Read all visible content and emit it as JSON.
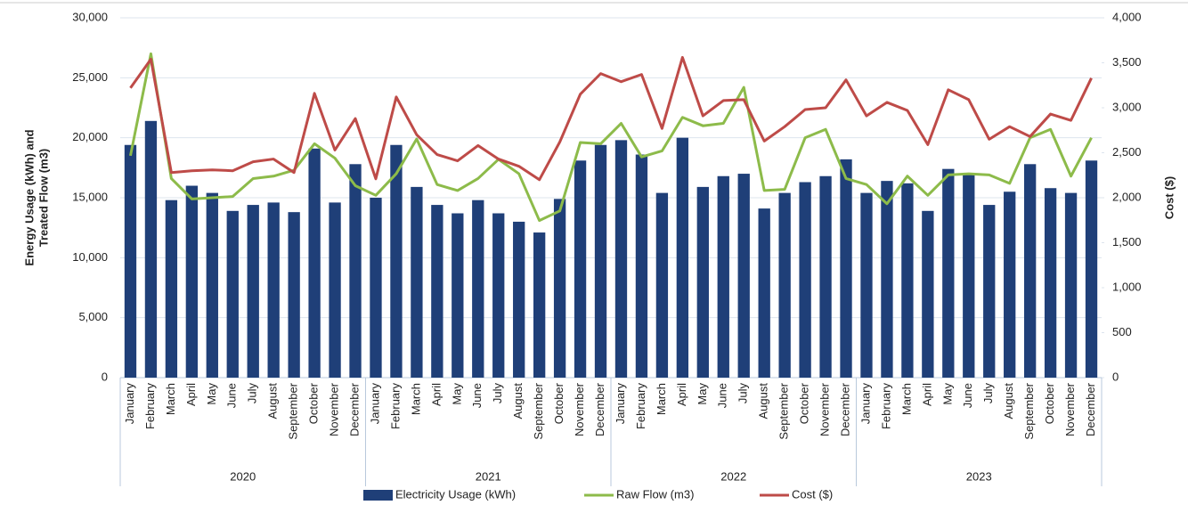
{
  "chart_data": {
    "type": "bar-line",
    "y_label": [
      "Energy Usage (kWh) and",
      "Treated Flow (m3)"
    ],
    "y2_label": "Cost ($)",
    "categories": [
      "January",
      "February",
      "March",
      "April",
      "May",
      "June",
      "July",
      "August",
      "September",
      "October",
      "November",
      "December",
      "January",
      "February",
      "March",
      "April",
      "May",
      "June",
      "July",
      "August",
      "September",
      "October",
      "November",
      "December",
      "January",
      "February",
      "March",
      "April",
      "May",
      "June",
      "July",
      "August",
      "September",
      "October",
      "November",
      "December",
      "January",
      "February",
      "March",
      "April",
      "May",
      "June",
      "July",
      "August",
      "September",
      "October",
      "November",
      "December"
    ],
    "category_groups": [
      "2020",
      "2021",
      "2022",
      "2023"
    ],
    "ylim": [
      0,
      30000
    ],
    "yticks": [
      0,
      {
        "value": 5000,
        "label": "5,000"
      },
      {
        "value": 10000,
        "label": "10,000"
      },
      {
        "value": 15000,
        "label": "15,000"
      },
      {
        "value": 20000,
        "label": "20,000"
      },
      {
        "value": 25000,
        "label": "25,000"
      },
      {
        "value": 30000,
        "label": "30,000"
      }
    ],
    "y2lim": [
      0,
      4000
    ],
    "y2ticks": [
      0,
      500,
      {
        "value": 1000,
        "label": "1,000"
      },
      {
        "value": 1500,
        "label": "1,500"
      },
      {
        "value": 2000,
        "label": "2,000"
      },
      {
        "value": 2500,
        "label": "2,500"
      },
      {
        "value": 3000,
        "label": "3,000"
      },
      {
        "value": 3500,
        "label": "3,500"
      },
      {
        "value": 4000,
        "label": "4,000"
      }
    ],
    "grid": true,
    "legend": "bottom",
    "series": [
      {
        "name": "Electricity Usage (kWh)",
        "type": "bar",
        "color": "#1f3f78",
        "values": [
          19400,
          21400,
          14800,
          16000,
          15400,
          13900,
          14400,
          14600,
          13800,
          19100,
          14600,
          17800,
          15000,
          19400,
          15900,
          14400,
          13700,
          14800,
          13700,
          13000,
          12100,
          14900,
          18100,
          19400,
          19800,
          18600,
          15400,
          20000,
          15900,
          16800,
          17000,
          14100,
          15400,
          16300,
          16800,
          18200,
          15400,
          16400,
          16200,
          13900,
          17400,
          16900,
          14400,
          15500,
          17800,
          15800,
          15400,
          18100
        ]
      },
      {
        "name": "Raw Flow (m3)",
        "type": "line",
        "color": "#8dbb4a",
        "values": [
          18500,
          27000,
          16600,
          14900,
          15000,
          15100,
          16600,
          16800,
          17300,
          19500,
          18300,
          16000,
          15200,
          17000,
          19900,
          16100,
          15600,
          16600,
          18200,
          17000,
          13100,
          13900,
          19600,
          19500,
          21200,
          18400,
          18900,
          21700,
          21000,
          21200,
          24200,
          15600,
          15700,
          20000,
          20700,
          16600,
          16100,
          14500,
          16800,
          15200,
          16900,
          17000,
          16900,
          16200,
          20000,
          20700,
          16800,
          20000
        ]
      },
      {
        "name": "Cost ($)",
        "type": "line",
        "axis": "y2",
        "color": "#be4b48",
        "values": [
          3220,
          3540,
          2280,
          2300,
          2310,
          2300,
          2400,
          2430,
          2280,
          3160,
          2530,
          2880,
          2210,
          3120,
          2700,
          2480,
          2410,
          2580,
          2430,
          2350,
          2200,
          2620,
          3150,
          3380,
          3290,
          3370,
          2770,
          3560,
          2910,
          3080,
          3090,
          2630,
          2790,
          2980,
          3000,
          3310,
          2910,
          3060,
          2970,
          2590,
          3200,
          3090,
          2650,
          2790,
          2680,
          2930,
          2860,
          3330
        ]
      }
    ]
  }
}
